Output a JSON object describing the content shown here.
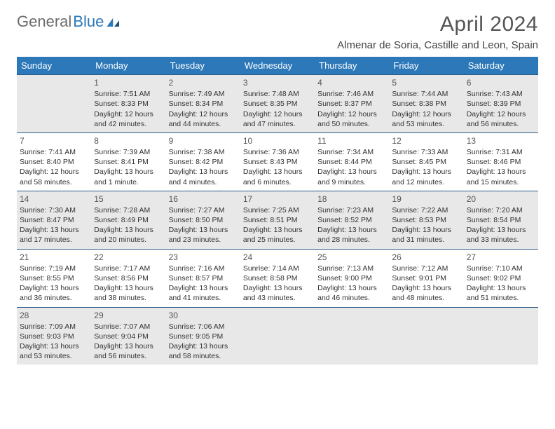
{
  "brand": {
    "part1": "General",
    "part2": "Blue"
  },
  "title": "April 2024",
  "location": "Almenar de Soria, Castille and Leon, Spain",
  "colors": {
    "header_bg": "#2c78b8",
    "rule": "#2c5a88",
    "shade": "#e8e8e8",
    "text": "#333333",
    "brand_blue": "#2c78b8"
  },
  "dayHeaders": [
    "Sunday",
    "Monday",
    "Tuesday",
    "Wednesday",
    "Thursday",
    "Friday",
    "Saturday"
  ],
  "weeks": [
    {
      "shaded": true,
      "days": [
        null,
        {
          "n": "1",
          "sr": "Sunrise: 7:51 AM",
          "ss": "Sunset: 8:33 PM",
          "d1": "Daylight: 12 hours",
          "d2": "and 42 minutes."
        },
        {
          "n": "2",
          "sr": "Sunrise: 7:49 AM",
          "ss": "Sunset: 8:34 PM",
          "d1": "Daylight: 12 hours",
          "d2": "and 44 minutes."
        },
        {
          "n": "3",
          "sr": "Sunrise: 7:48 AM",
          "ss": "Sunset: 8:35 PM",
          "d1": "Daylight: 12 hours",
          "d2": "and 47 minutes."
        },
        {
          "n": "4",
          "sr": "Sunrise: 7:46 AM",
          "ss": "Sunset: 8:37 PM",
          "d1": "Daylight: 12 hours",
          "d2": "and 50 minutes."
        },
        {
          "n": "5",
          "sr": "Sunrise: 7:44 AM",
          "ss": "Sunset: 8:38 PM",
          "d1": "Daylight: 12 hours",
          "d2": "and 53 minutes."
        },
        {
          "n": "6",
          "sr": "Sunrise: 7:43 AM",
          "ss": "Sunset: 8:39 PM",
          "d1": "Daylight: 12 hours",
          "d2": "and 56 minutes."
        }
      ]
    },
    {
      "shaded": false,
      "days": [
        {
          "n": "7",
          "sr": "Sunrise: 7:41 AM",
          "ss": "Sunset: 8:40 PM",
          "d1": "Daylight: 12 hours",
          "d2": "and 58 minutes."
        },
        {
          "n": "8",
          "sr": "Sunrise: 7:39 AM",
          "ss": "Sunset: 8:41 PM",
          "d1": "Daylight: 13 hours",
          "d2": "and 1 minute."
        },
        {
          "n": "9",
          "sr": "Sunrise: 7:38 AM",
          "ss": "Sunset: 8:42 PM",
          "d1": "Daylight: 13 hours",
          "d2": "and 4 minutes."
        },
        {
          "n": "10",
          "sr": "Sunrise: 7:36 AM",
          "ss": "Sunset: 8:43 PM",
          "d1": "Daylight: 13 hours",
          "d2": "and 6 minutes."
        },
        {
          "n": "11",
          "sr": "Sunrise: 7:34 AM",
          "ss": "Sunset: 8:44 PM",
          "d1": "Daylight: 13 hours",
          "d2": "and 9 minutes."
        },
        {
          "n": "12",
          "sr": "Sunrise: 7:33 AM",
          "ss": "Sunset: 8:45 PM",
          "d1": "Daylight: 13 hours",
          "d2": "and 12 minutes."
        },
        {
          "n": "13",
          "sr": "Sunrise: 7:31 AM",
          "ss": "Sunset: 8:46 PM",
          "d1": "Daylight: 13 hours",
          "d2": "and 15 minutes."
        }
      ]
    },
    {
      "shaded": true,
      "days": [
        {
          "n": "14",
          "sr": "Sunrise: 7:30 AM",
          "ss": "Sunset: 8:47 PM",
          "d1": "Daylight: 13 hours",
          "d2": "and 17 minutes."
        },
        {
          "n": "15",
          "sr": "Sunrise: 7:28 AM",
          "ss": "Sunset: 8:49 PM",
          "d1": "Daylight: 13 hours",
          "d2": "and 20 minutes."
        },
        {
          "n": "16",
          "sr": "Sunrise: 7:27 AM",
          "ss": "Sunset: 8:50 PM",
          "d1": "Daylight: 13 hours",
          "d2": "and 23 minutes."
        },
        {
          "n": "17",
          "sr": "Sunrise: 7:25 AM",
          "ss": "Sunset: 8:51 PM",
          "d1": "Daylight: 13 hours",
          "d2": "and 25 minutes."
        },
        {
          "n": "18",
          "sr": "Sunrise: 7:23 AM",
          "ss": "Sunset: 8:52 PM",
          "d1": "Daylight: 13 hours",
          "d2": "and 28 minutes."
        },
        {
          "n": "19",
          "sr": "Sunrise: 7:22 AM",
          "ss": "Sunset: 8:53 PM",
          "d1": "Daylight: 13 hours",
          "d2": "and 31 minutes."
        },
        {
          "n": "20",
          "sr": "Sunrise: 7:20 AM",
          "ss": "Sunset: 8:54 PM",
          "d1": "Daylight: 13 hours",
          "d2": "and 33 minutes."
        }
      ]
    },
    {
      "shaded": false,
      "days": [
        {
          "n": "21",
          "sr": "Sunrise: 7:19 AM",
          "ss": "Sunset: 8:55 PM",
          "d1": "Daylight: 13 hours",
          "d2": "and 36 minutes."
        },
        {
          "n": "22",
          "sr": "Sunrise: 7:17 AM",
          "ss": "Sunset: 8:56 PM",
          "d1": "Daylight: 13 hours",
          "d2": "and 38 minutes."
        },
        {
          "n": "23",
          "sr": "Sunrise: 7:16 AM",
          "ss": "Sunset: 8:57 PM",
          "d1": "Daylight: 13 hours",
          "d2": "and 41 minutes."
        },
        {
          "n": "24",
          "sr": "Sunrise: 7:14 AM",
          "ss": "Sunset: 8:58 PM",
          "d1": "Daylight: 13 hours",
          "d2": "and 43 minutes."
        },
        {
          "n": "25",
          "sr": "Sunrise: 7:13 AM",
          "ss": "Sunset: 9:00 PM",
          "d1": "Daylight: 13 hours",
          "d2": "and 46 minutes."
        },
        {
          "n": "26",
          "sr": "Sunrise: 7:12 AM",
          "ss": "Sunset: 9:01 PM",
          "d1": "Daylight: 13 hours",
          "d2": "and 48 minutes."
        },
        {
          "n": "27",
          "sr": "Sunrise: 7:10 AM",
          "ss": "Sunset: 9:02 PM",
          "d1": "Daylight: 13 hours",
          "d2": "and 51 minutes."
        }
      ]
    },
    {
      "shaded": true,
      "days": [
        {
          "n": "28",
          "sr": "Sunrise: 7:09 AM",
          "ss": "Sunset: 9:03 PM",
          "d1": "Daylight: 13 hours",
          "d2": "and 53 minutes."
        },
        {
          "n": "29",
          "sr": "Sunrise: 7:07 AM",
          "ss": "Sunset: 9:04 PM",
          "d1": "Daylight: 13 hours",
          "d2": "and 56 minutes."
        },
        {
          "n": "30",
          "sr": "Sunrise: 7:06 AM",
          "ss": "Sunset: 9:05 PM",
          "d1": "Daylight: 13 hours",
          "d2": "and 58 minutes."
        },
        null,
        null,
        null,
        null
      ]
    }
  ]
}
